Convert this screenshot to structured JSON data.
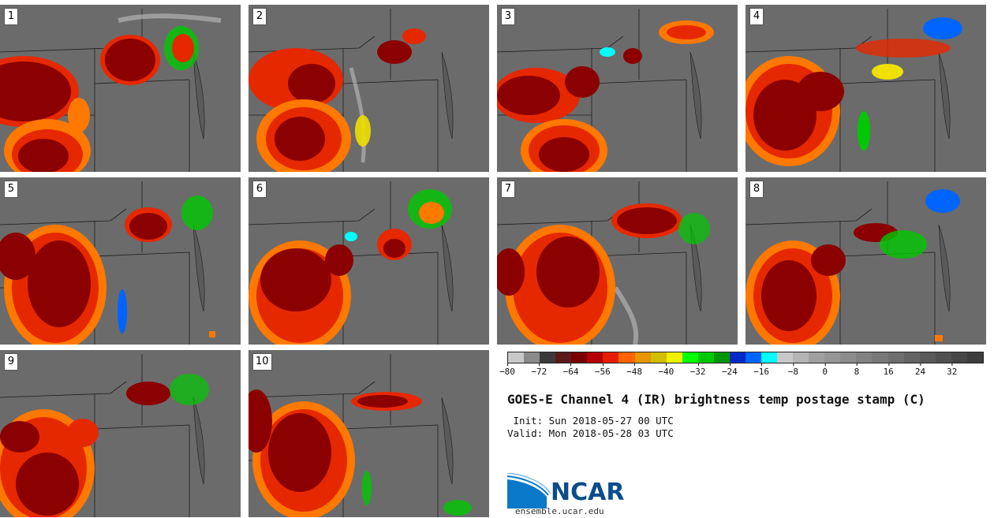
{
  "panels": [
    {
      "label": "1"
    },
    {
      "label": "2"
    },
    {
      "label": "3"
    },
    {
      "label": "4"
    },
    {
      "label": "5"
    },
    {
      "label": "6"
    },
    {
      "label": "7"
    },
    {
      "label": "8"
    },
    {
      "label": "9"
    },
    {
      "label": "10"
    }
  ],
  "colorbar": {
    "colors": [
      "#c8c8c8",
      "#8a8a8a",
      "#3a3a3a",
      "#5a1a1a",
      "#7a0000",
      "#b40000",
      "#e61e00",
      "#ff6400",
      "#e69600",
      "#d2be00",
      "#f0f000",
      "#00ff00",
      "#00c800",
      "#009600",
      "#0028c8",
      "#0064ff",
      "#00ffff",
      "#c8c8c8",
      "#b4b4b4",
      "#a0a0a0",
      "#969696",
      "#8c8c8c",
      "#828282",
      "#787878",
      "#6e6e6e",
      "#646464",
      "#5a5a5a",
      "#505050",
      "#464646",
      "#3c3c3c"
    ],
    "tick_labels": [
      "−80",
      "−72",
      "−64",
      "−56",
      "−48",
      "−40",
      "−32",
      "−24",
      "−16",
      "−8",
      "0",
      "8",
      "16",
      "24",
      "32"
    ],
    "tick_values": [
      -80,
      -72,
      -64,
      -56,
      -48,
      -40,
      -32,
      -24,
      -16,
      -8,
      0,
      8,
      16,
      24,
      32
    ],
    "range": [
      -80,
      40
    ]
  },
  "title": "GOES-E Channel 4 (IR) brightness temp postage stamp (C)",
  "init": " Init: Sun 2018-05-27 00 UTC",
  "valid": "Valid: Mon 2018-05-28 03 UTC",
  "logo": {
    "name": "NCAR",
    "url": "ensemble.ucar.edu",
    "brand_color": "#0a4d8c"
  },
  "palette": {
    "cold_top": "#8b0000",
    "warm_red": "#e62800",
    "orange": "#ff7800",
    "yellow": "#f0e000",
    "green": "#00c800",
    "blue": "#0064ff",
    "cyan": "#00ffff",
    "clear_gray": "#6b6b6b",
    "cirrus": "#d0d0d0"
  }
}
